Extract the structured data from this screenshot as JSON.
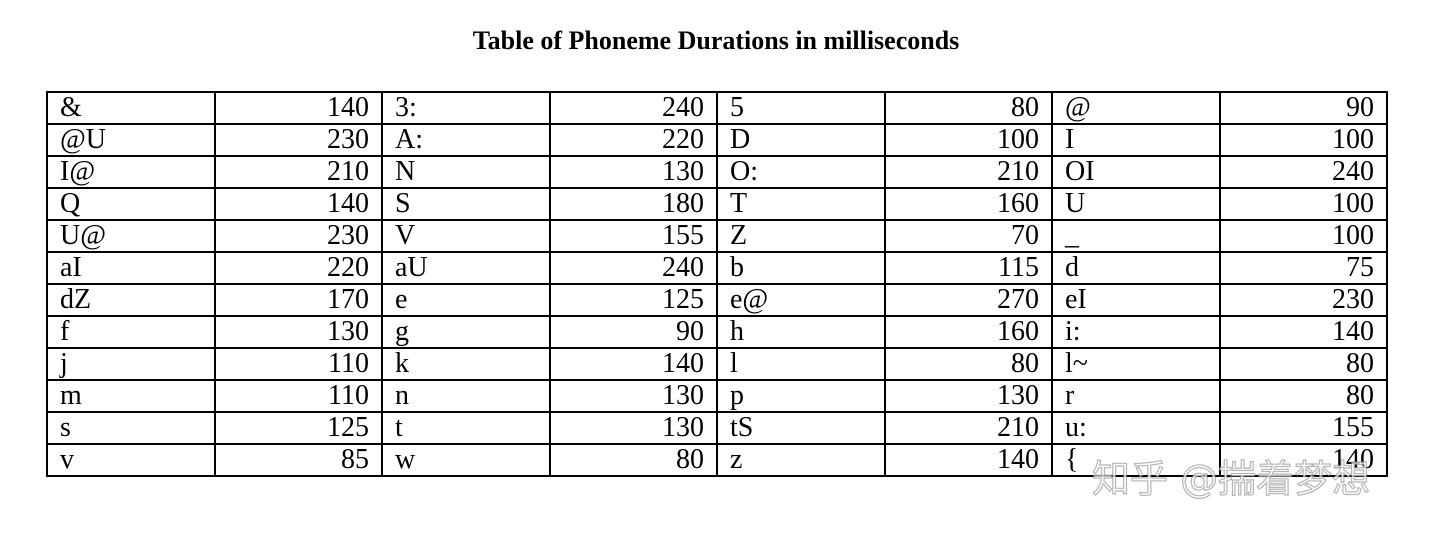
{
  "title": "Table of Phoneme Durations in milliseconds",
  "table": {
    "rows": [
      [
        {
          "phoneme": "&",
          "ms": "140"
        },
        {
          "phoneme": "3:",
          "ms": "240"
        },
        {
          "phoneme": "5",
          "ms": "80"
        },
        {
          "phoneme": "@",
          "ms": "90"
        }
      ],
      [
        {
          "phoneme": "@U",
          "ms": "230"
        },
        {
          "phoneme": "A:",
          "ms": "220"
        },
        {
          "phoneme": "D",
          "ms": "100"
        },
        {
          "phoneme": "I",
          "ms": "100"
        }
      ],
      [
        {
          "phoneme": "I@",
          "ms": "210"
        },
        {
          "phoneme": "N",
          "ms": "130"
        },
        {
          "phoneme": "O:",
          "ms": "210"
        },
        {
          "phoneme": "OI",
          "ms": "240"
        }
      ],
      [
        {
          "phoneme": "Q",
          "ms": "140"
        },
        {
          "phoneme": "S",
          "ms": "180"
        },
        {
          "phoneme": "T",
          "ms": "160"
        },
        {
          "phoneme": "U",
          "ms": "100"
        }
      ],
      [
        {
          "phoneme": "U@",
          "ms": "230"
        },
        {
          "phoneme": "V",
          "ms": "155"
        },
        {
          "phoneme": "Z",
          "ms": "70"
        },
        {
          "phoneme": "_",
          "ms": "100"
        }
      ],
      [
        {
          "phoneme": "aI",
          "ms": "220"
        },
        {
          "phoneme": "aU",
          "ms": "240"
        },
        {
          "phoneme": "b",
          "ms": "115"
        },
        {
          "phoneme": "d",
          "ms": "75"
        }
      ],
      [
        {
          "phoneme": "dZ",
          "ms": "170"
        },
        {
          "phoneme": "e",
          "ms": "125"
        },
        {
          "phoneme": "e@",
          "ms": "270"
        },
        {
          "phoneme": "eI",
          "ms": "230"
        }
      ],
      [
        {
          "phoneme": "f",
          "ms": "130"
        },
        {
          "phoneme": "g",
          "ms": "90"
        },
        {
          "phoneme": "h",
          "ms": "160"
        },
        {
          "phoneme": "i:",
          "ms": "140"
        }
      ],
      [
        {
          "phoneme": "j",
          "ms": "110"
        },
        {
          "phoneme": "k",
          "ms": "140"
        },
        {
          "phoneme": "l",
          "ms": "80"
        },
        {
          "phoneme": "l~",
          "ms": "80"
        }
      ],
      [
        {
          "phoneme": "m",
          "ms": "110"
        },
        {
          "phoneme": "n",
          "ms": "130"
        },
        {
          "phoneme": "p",
          "ms": "130"
        },
        {
          "phoneme": "r",
          "ms": "80"
        }
      ],
      [
        {
          "phoneme": "s",
          "ms": "125"
        },
        {
          "phoneme": "t",
          "ms": "130"
        },
        {
          "phoneme": "tS",
          "ms": "210"
        },
        {
          "phoneme": "u:",
          "ms": "155"
        }
      ],
      [
        {
          "phoneme": "v",
          "ms": "85"
        },
        {
          "phoneme": "w",
          "ms": "80"
        },
        {
          "phoneme": "z",
          "ms": "140"
        },
        {
          "phoneme": "{",
          "ms": "140"
        }
      ]
    ]
  },
  "watermark": "知乎 @揣着梦想"
}
